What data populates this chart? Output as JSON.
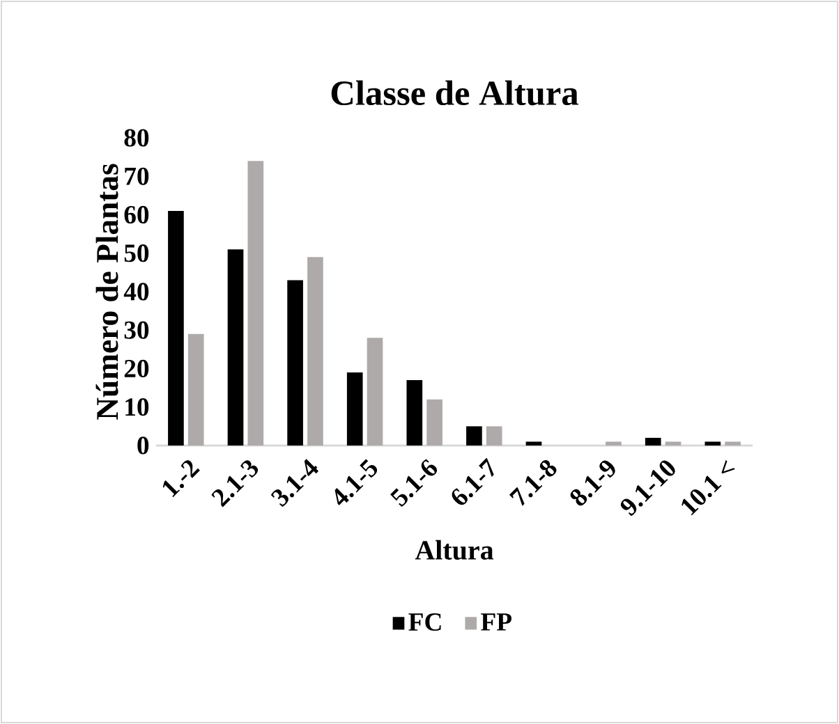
{
  "chart_data": {
    "type": "bar",
    "title": "Classe de Altura",
    "xlabel": "Altura",
    "ylabel": "Número de Plantas",
    "categories": [
      "1.-2",
      "2.1-3",
      "3.1-4",
      "4.1-5",
      "5.1-6",
      "6.1-7",
      "7.1-8",
      "8.1-9",
      "9.1-10",
      "10.1 <"
    ],
    "series": [
      {
        "name": "FC",
        "color": "#000000",
        "values": [
          61,
          51,
          43,
          19,
          17,
          5,
          1,
          0,
          2,
          1
        ]
      },
      {
        "name": "FP",
        "color": "#aeaaaa",
        "values": [
          29,
          74,
          49,
          28,
          12,
          5,
          0,
          1,
          1,
          1
        ]
      }
    ],
    "ylim": [
      0,
      80
    ],
    "yticks": [
      0,
      10,
      20,
      30,
      40,
      50,
      60,
      70,
      80
    ],
    "legend": "bottom"
  }
}
